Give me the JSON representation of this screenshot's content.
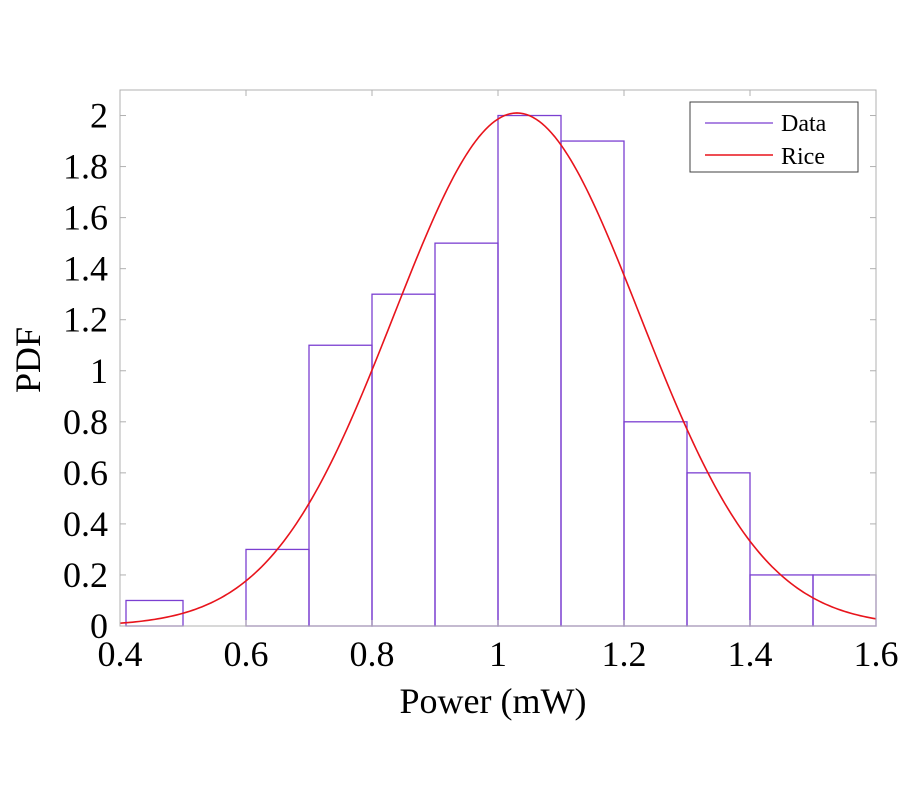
{
  "chart_data": {
    "type": "histogram-with-fit",
    "xlabel": "Power (mW)",
    "ylabel": "PDF",
    "xlim": [
      0.4,
      1.6
    ],
    "ylim": [
      0,
      2.1
    ],
    "xticks": [
      "0.4",
      "0.6",
      "0.8",
      "1",
      "1.2",
      "1.4",
      "1.6"
    ],
    "yticks": [
      "0",
      "0.2",
      "0.4",
      "0.6",
      "0.8",
      "1",
      "1.2",
      "1.4",
      "1.6",
      "1.8",
      "2"
    ],
    "bins": [
      {
        "x0": 0.4,
        "x1": 0.5,
        "value": 0.1
      },
      {
        "x0": 0.5,
        "x1": 0.6,
        "value": 0.0
      },
      {
        "x0": 0.6,
        "x1": 0.7,
        "value": 0.3
      },
      {
        "x0": 0.7,
        "x1": 0.8,
        "value": 1.1
      },
      {
        "x0": 0.8,
        "x1": 0.9,
        "value": 1.3
      },
      {
        "x0": 0.9,
        "x1": 1.0,
        "value": 1.5
      },
      {
        "x0": 1.0,
        "x1": 1.1,
        "value": 2.0
      },
      {
        "x0": 1.1,
        "x1": 1.2,
        "value": 1.9
      },
      {
        "x0": 1.2,
        "x1": 1.3,
        "value": 0.8
      },
      {
        "x0": 1.3,
        "x1": 1.4,
        "value": 0.6
      },
      {
        "x0": 1.4,
        "x1": 1.5,
        "value": 0.2
      },
      {
        "x0": 1.5,
        "x1": 1.6,
        "value": 0.2
      }
    ],
    "fit": {
      "name": "Rice",
      "peak_x": 1.03,
      "peak_y": 2.01,
      "sigma": 0.195
    },
    "legend": {
      "position": "top-right",
      "entries": [
        {
          "label": "Data",
          "color": "#7b3fd1"
        },
        {
          "label": "Rice",
          "color": "#e8141c"
        }
      ]
    },
    "colors": {
      "histogram": "#7b3fd1",
      "fit": "#e8141c",
      "axes": "#000000",
      "frame": "#b0b0b0"
    }
  }
}
